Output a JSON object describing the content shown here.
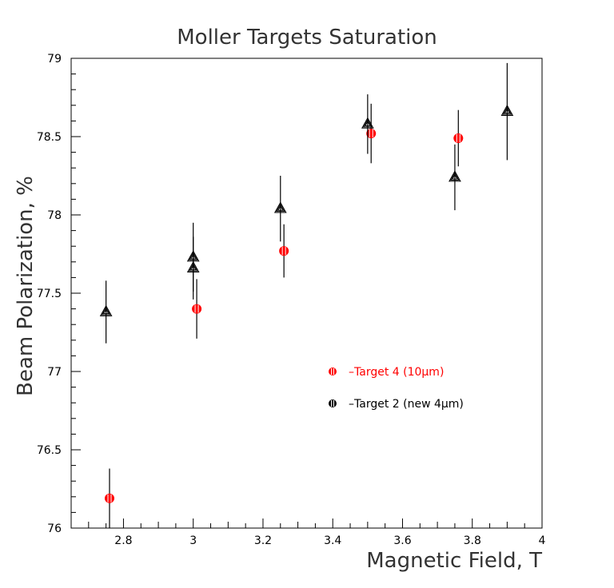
{
  "chart_data": {
    "type": "scatter",
    "title": "Moller Targets Saturation",
    "xlabel": "Magnetic Field, T",
    "ylabel": "Beam Polarization, %",
    "xlim": [
      2.65,
      4.0
    ],
    "ylim": [
      76,
      79
    ],
    "x_ticks": [
      "2.8",
      "3",
      "3.2",
      "3.4",
      "3.6",
      "3.8",
      "4"
    ],
    "y_ticks": [
      "76",
      "76.5",
      "77",
      "77.5",
      "78",
      "78.5",
      "79"
    ],
    "grid": false,
    "legend_position": "center-right",
    "series": [
      {
        "name": "–Target 4 (10μm)",
        "color": "#ff0000",
        "marker": "circle",
        "points": [
          {
            "x": 2.76,
            "y": 76.19,
            "err": 0.19
          },
          {
            "x": 3.01,
            "y": 77.4,
            "err": 0.19
          },
          {
            "x": 3.26,
            "y": 77.77,
            "err": 0.17
          },
          {
            "x": 3.51,
            "y": 78.52,
            "err": 0.19
          },
          {
            "x": 3.76,
            "y": 78.49,
            "err": 0.18
          }
        ]
      },
      {
        "name": "–Target 2 (new 4μm)",
        "color": "#000000",
        "marker": "triangle",
        "points": [
          {
            "x": 2.75,
            "y": 77.38,
            "err": 0.2
          },
          {
            "x": 3.0,
            "y": 77.73,
            "err": 0.22
          },
          {
            "x": 3.0,
            "y": 77.66,
            "err": 0.2
          },
          {
            "x": 3.25,
            "y": 78.04,
            "err": 0.21
          },
          {
            "x": 3.5,
            "y": 78.58,
            "err": 0.19
          },
          {
            "x": 3.75,
            "y": 78.24,
            "err": 0.21
          },
          {
            "x": 3.9,
            "y": 78.66,
            "err": 0.31
          }
        ]
      }
    ]
  }
}
